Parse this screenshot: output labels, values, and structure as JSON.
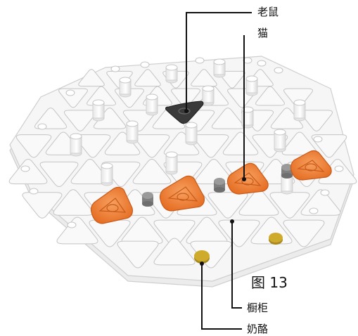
{
  "labels": {
    "mouse": "老鼠",
    "cat": "猫",
    "figure": "图 13",
    "cupboard": "橱柜",
    "cheese": "奶酪"
  },
  "colors": {
    "board": "#f3f3f3",
    "board_edge": "#d6d6d6",
    "cell": "#f7f7f7",
    "cell_stroke": "#c9c9c9",
    "peg": "#ffffff",
    "cat": "#ef7a30",
    "cat_dark": "#c95a19",
    "mouse": "#3a3a3a",
    "cheese": "#c9a428",
    "gray_peg": "#8c8c8c",
    "leader": "#111111"
  }
}
